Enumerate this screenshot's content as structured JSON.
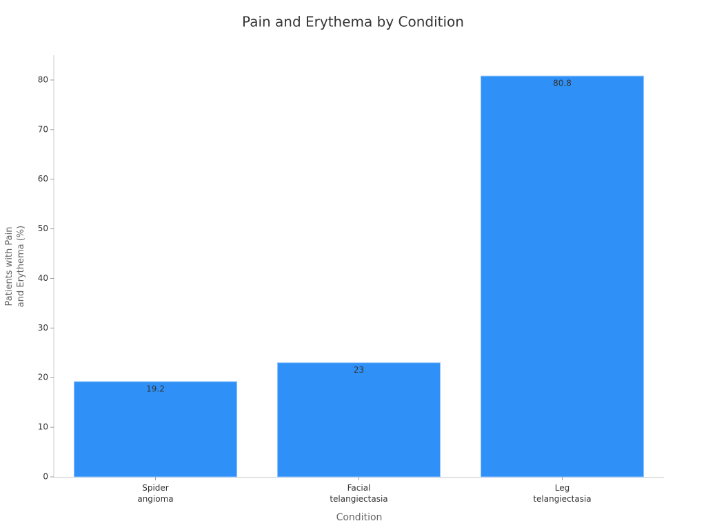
{
  "chart_data": {
    "type": "bar",
    "title": "Pain and Erythema by Condition",
    "x_label": "Condition",
    "y_label": "Patients with Pain and Erythema (%)",
    "categories": [
      "Spider angioma",
      "Facial telangiectasia",
      "Leg telangiectasia"
    ],
    "values": [
      19.2,
      23,
      80.8
    ],
    "color": "#2f91f8",
    "ylim": [
      0,
      85
    ],
    "yticks": [
      0,
      10,
      20,
      30,
      40,
      50,
      60,
      70,
      80
    ],
    "grid": false
  }
}
